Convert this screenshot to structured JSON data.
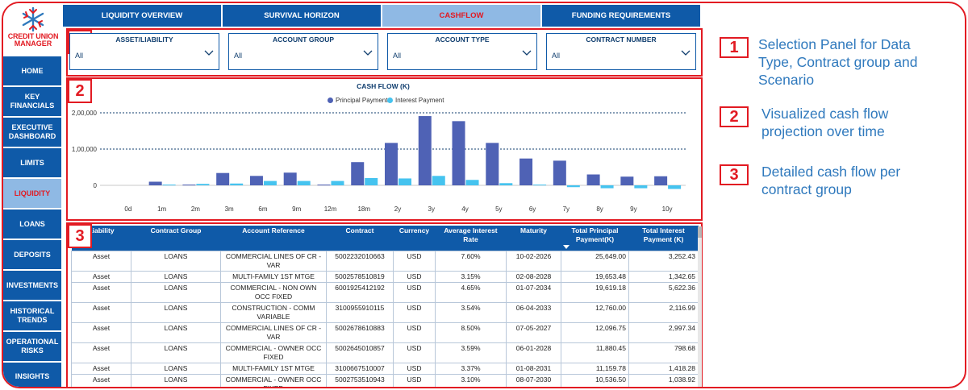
{
  "logo": {
    "line1": "CREDIT UNION",
    "line2": "MANAGER"
  },
  "sidebar": {
    "items": [
      {
        "label": "HOME",
        "active": false
      },
      {
        "label": "KEY FINANCIALS",
        "active": false
      },
      {
        "label": "EXECUTIVE DASHBOARD",
        "active": false
      },
      {
        "label": "LIMITS",
        "active": false
      },
      {
        "label": "LIQUIDITY",
        "active": true
      },
      {
        "label": "LOANS",
        "active": false
      },
      {
        "label": "DEPOSITS",
        "active": false
      },
      {
        "label": "INVESTMENTS",
        "active": false
      },
      {
        "label": "HISTORICAL TRENDS",
        "active": false
      },
      {
        "label": "OPERATIONAL RISKS",
        "active": false
      },
      {
        "label": "INSIGHTS",
        "active": false
      }
    ]
  },
  "tabs": [
    {
      "label": "LIQUIDITY OVERVIEW",
      "active": false
    },
    {
      "label": "SURVIVAL HORIZON",
      "active": false
    },
    {
      "label": "CASHFLOW",
      "active": true
    },
    {
      "label": "FUNDING REQUIREMENTS",
      "active": false
    }
  ],
  "filters": [
    {
      "label": "ASSET/LIABILITY",
      "value": "All"
    },
    {
      "label": "ACCOUNT GROUP",
      "value": "All"
    },
    {
      "label": "ACCOUNT TYPE",
      "value": "All"
    },
    {
      "label": "CONTRACT NUMBER",
      "value": "All"
    }
  ],
  "section_numbers": [
    "1",
    "2",
    "3"
  ],
  "chart_data": {
    "type": "bar",
    "title": "CASH FLOW (K)",
    "categories": [
      "0d",
      "1m",
      "2m",
      "3m",
      "6m",
      "9m",
      "12m",
      "18m",
      "2y",
      "3y",
      "4y",
      "5y",
      "6y",
      "7y",
      "8y",
      "9y",
      "10y"
    ],
    "series": [
      {
        "name": "Principal Payment",
        "color": "#4f62b5",
        "values": [
          0,
          10000,
          2000,
          34000,
          26000,
          35000,
          2000,
          64000,
          117000,
          191000,
          177000,
          117000,
          74000,
          68000,
          30000,
          24000,
          25000
        ]
      },
      {
        "name": "Interest Payment",
        "color": "#45c3ef",
        "values": [
          0,
          2000,
          4000,
          5000,
          12000,
          12000,
          12000,
          20000,
          19000,
          26000,
          15000,
          6000,
          2000,
          -5000,
          -8000,
          -8000,
          -10000
        ]
      }
    ],
    "ylim": [
      -15000,
      210000
    ],
    "yticks": [
      0,
      100000,
      200000
    ],
    "ytick_labels": [
      "0",
      "1,00,000",
      "2,00,000"
    ],
    "legend_position": "top-center",
    "grid": true
  },
  "table": {
    "headers": [
      "Liability",
      "Contract Group",
      "Account Reference",
      "Contract",
      "Currency",
      "Average Interest Rate",
      "Maturity",
      "Total Principal Payment(K)",
      "Total Interest Payment (K)"
    ],
    "rows": [
      [
        "Asset",
        "LOANS",
        "COMMERCIAL LINES OF CR - VAR",
        "5002232010663",
        "USD",
        "7.60%",
        "10-02-2026",
        "25,649.00",
        "3,252.43"
      ],
      [
        "Asset",
        "LOANS",
        "MULTI-FAMILY 1ST MTGE",
        "5002578510819",
        "USD",
        "3.15%",
        "02-08-2028",
        "19,653.48",
        "1,342.65"
      ],
      [
        "Asset",
        "LOANS",
        "COMMERCIAL - NON OWN OCC FIXED",
        "6001925412192",
        "USD",
        "4.65%",
        "01-07-2034",
        "19,619.18",
        "5,622.36"
      ],
      [
        "Asset",
        "LOANS",
        "CONSTRUCTION - COMM VARIABLE",
        "3100955910115",
        "USD",
        "3.54%",
        "06-04-2033",
        "12,760.00",
        "2,116.99"
      ],
      [
        "Asset",
        "LOANS",
        "COMMERCIAL LINES OF CR - VAR",
        "5002678610883",
        "USD",
        "8.50%",
        "07-05-2027",
        "12,096.75",
        "2,997.34"
      ],
      [
        "Asset",
        "LOANS",
        "COMMERCIAL - OWNER OCC FIXED",
        "5002645010857",
        "USD",
        "3.59%",
        "06-01-2028",
        "11,880.45",
        "798.68"
      ],
      [
        "Asset",
        "LOANS",
        "MULTI-FAMILY 1ST MTGE",
        "3100667510007",
        "USD",
        "3.37%",
        "01-08-2031",
        "11,159.78",
        "1,418.28"
      ],
      [
        "Asset",
        "LOANS",
        "COMMERCIAL - OWNER OCC FIXED",
        "5002753510943",
        "USD",
        "3.10%",
        "08-07-2030",
        "10,536.50",
        "1,038.92"
      ]
    ]
  },
  "annotations": [
    {
      "number": "1",
      "text": "Selection Panel for Data Type, Contract group and Scenario"
    },
    {
      "number": "2",
      "text": "Visualized cash flow projection over time"
    },
    {
      "number": "3",
      "text": "Detailed cash flow per contract group"
    }
  ],
  "colors": {
    "primary": "#0f5aa8",
    "active_tab": "#8fb9e4",
    "accent_red": "#e21a22",
    "annotation_blue": "#2f79bd"
  }
}
